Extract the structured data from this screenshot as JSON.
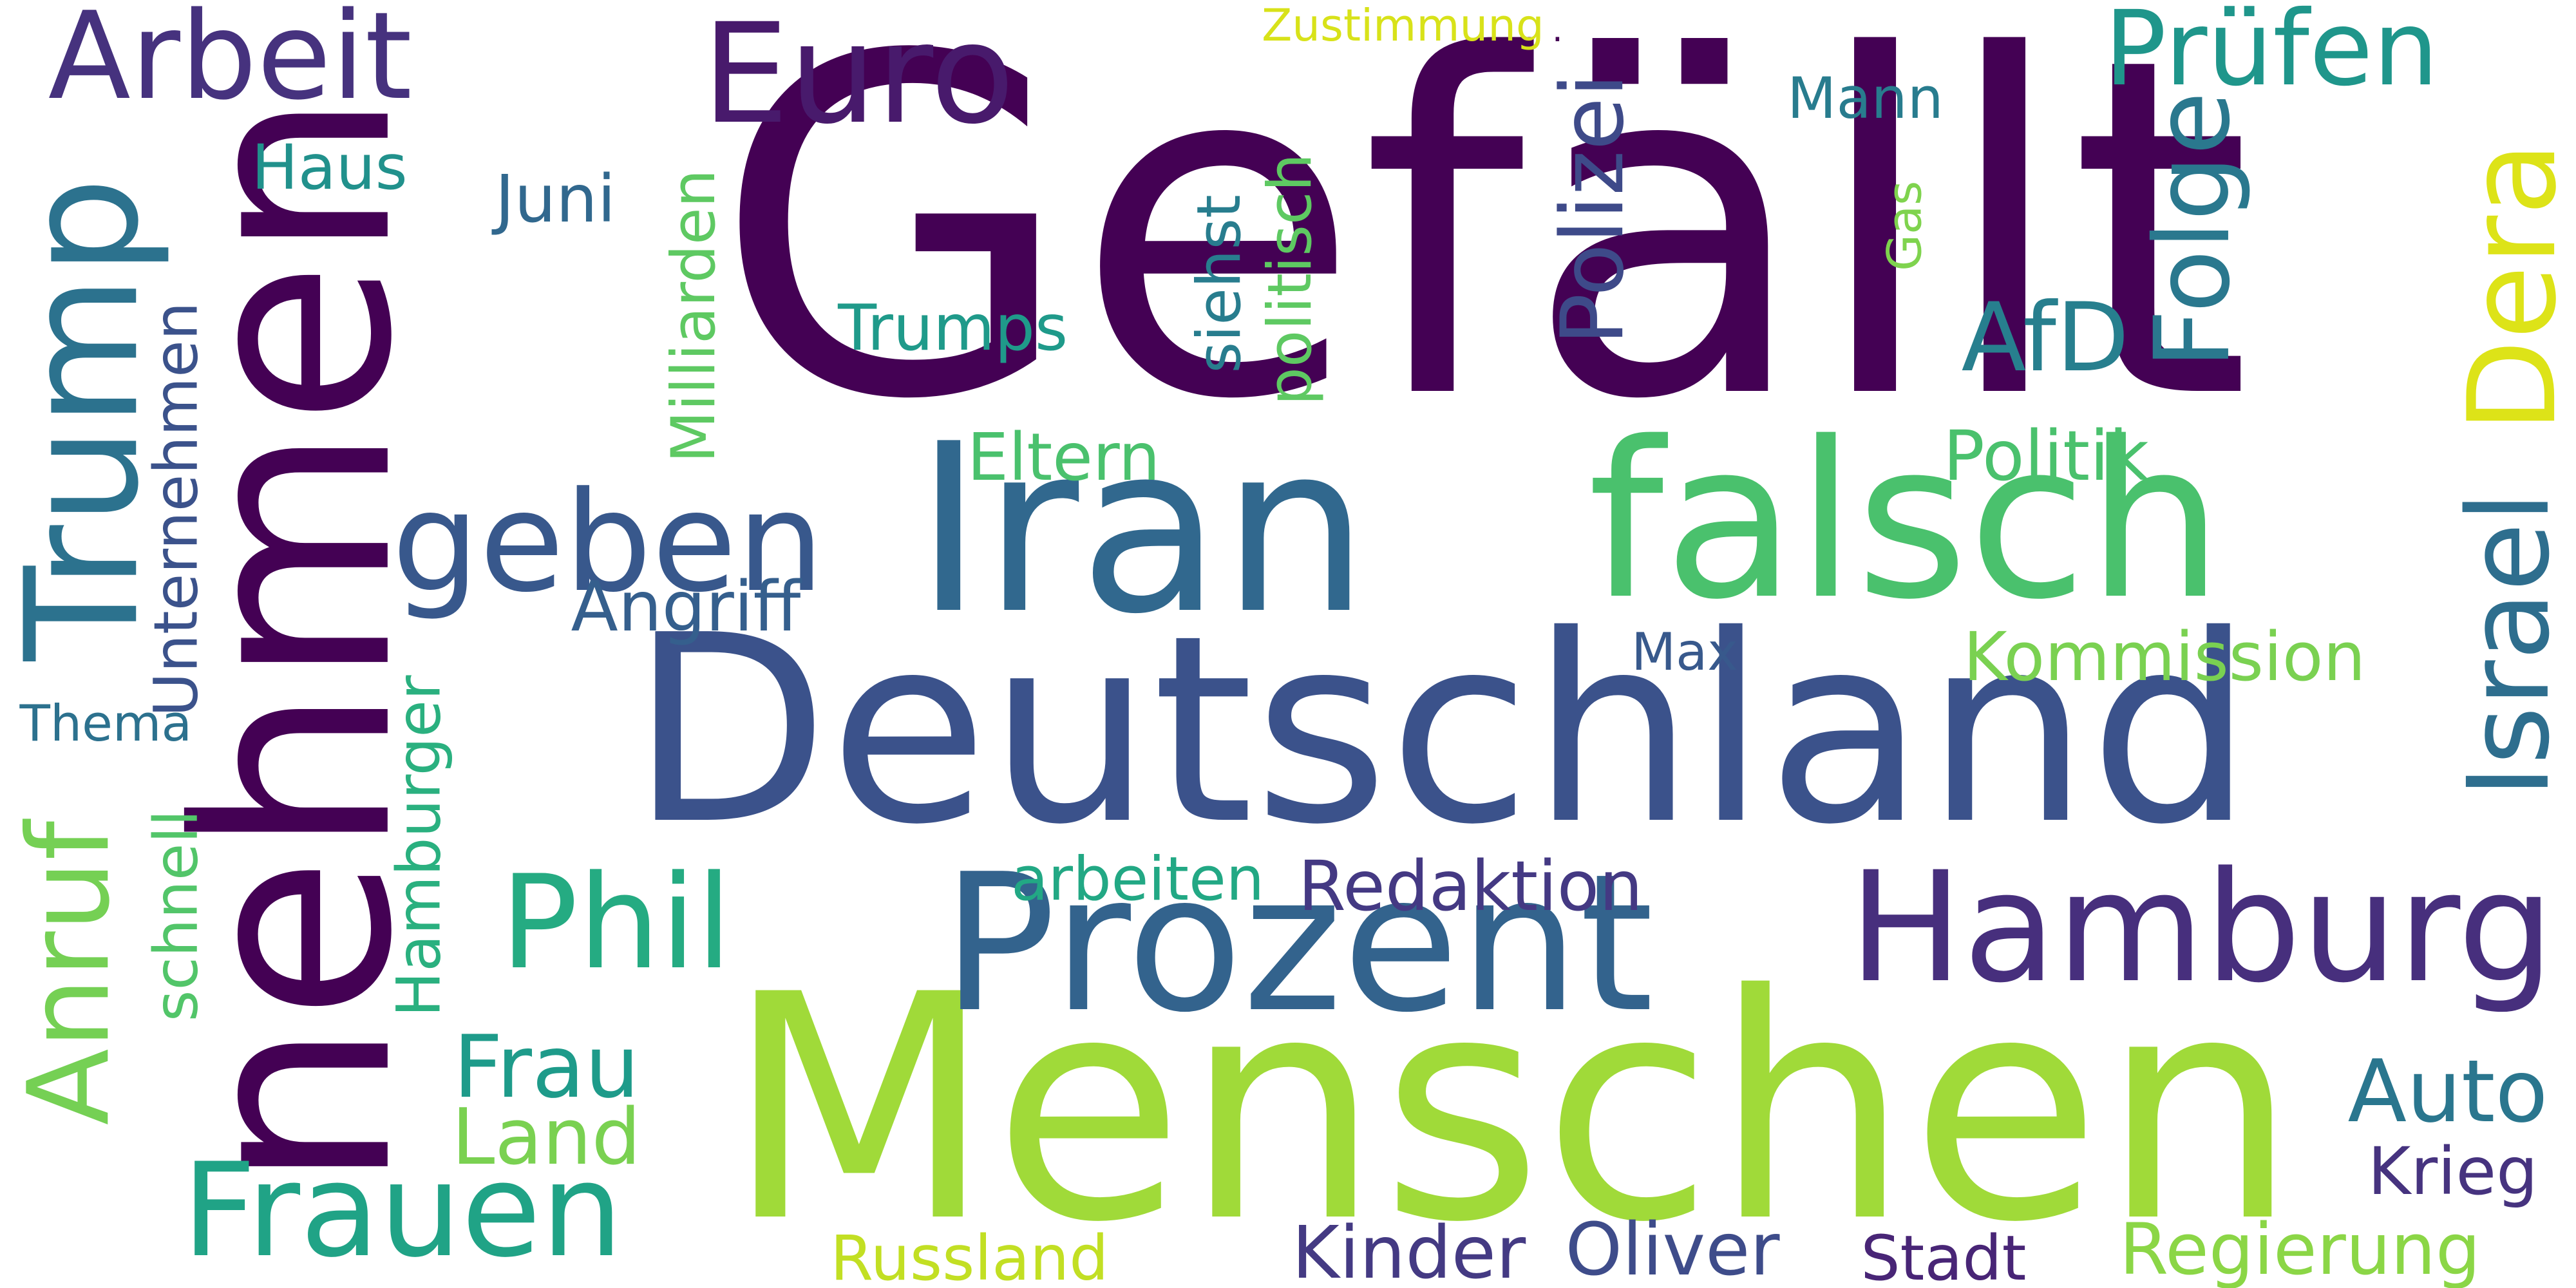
{
  "words": [
    {
      "text": "Gefällt",
      "color": "#440154",
      "rotated": false
    },
    {
      "text": "nehmen",
      "color": "#440154",
      "rotated": true
    },
    {
      "text": "Menschen",
      "color": "#a0da39",
      "rotated": false
    },
    {
      "text": "Deutschland",
      "color": "#3b528b",
      "rotated": false
    },
    {
      "text": "Iran",
      "color": "#31688e",
      "rotated": false
    },
    {
      "text": "falsch",
      "color": "#4ac16d",
      "rotated": false
    },
    {
      "text": "Prozent",
      "color": "#33638d",
      "rotated": false
    },
    {
      "text": "Hamburg",
      "color": "#472f7d",
      "rotated": false
    },
    {
      "text": "Trump",
      "color": "#2c728e",
      "rotated": true
    },
    {
      "text": "Euro",
      "color": "#481a6c",
      "rotated": false
    },
    {
      "text": "Arbeit",
      "color": "#46327e",
      "rotated": false
    },
    {
      "text": "geben",
      "color": "#38588c",
      "rotated": false
    },
    {
      "text": "Dera",
      "color": "#dde318",
      "rotated": true
    },
    {
      "text": "Prüfen",
      "color": "#1f968b",
      "rotated": false
    },
    {
      "text": "Phil",
      "color": "#25ab82",
      "rotated": false
    },
    {
      "text": "Frauen",
      "color": "#20a386",
      "rotated": false
    },
    {
      "text": "Anruf",
      "color": "#75d054",
      "rotated": true
    },
    {
      "text": "Frau",
      "color": "#1e9b8a",
      "rotated": false
    },
    {
      "text": "Land",
      "color": "#7ad151",
      "rotated": false
    },
    {
      "text": "Auto",
      "color": "#2a768e",
      "rotated": false
    },
    {
      "text": "AfD",
      "color": "#277f8e",
      "rotated": false
    },
    {
      "text": "Israel",
      "color": "#2e6e8e",
      "rotated": true
    },
    {
      "text": "Folge",
      "color": "#2a788e",
      "rotated": true
    },
    {
      "text": "Polizei",
      "color": "#3e4a89",
      "rotated": true
    },
    {
      "text": "Trumps",
      "color": "#1f9a8a",
      "rotated": false
    },
    {
      "text": "Angriff",
      "color": "#355f8d",
      "rotated": false
    },
    {
      "text": "Redaktion",
      "color": "#443983",
      "rotated": false
    },
    {
      "text": "Kommission",
      "color": "#7ad151",
      "rotated": false
    },
    {
      "text": "Unternehmen",
      "color": "#3b528b",
      "rotated": true
    },
    {
      "text": "Milliarden",
      "color": "#5ec962",
      "rotated": true
    },
    {
      "text": "Hamburger",
      "color": "#2ab07f",
      "rotated": true
    },
    {
      "text": "schnell",
      "color": "#52c569",
      "rotated": true
    },
    {
      "text": "politisch",
      "color": "#5ec962",
      "rotated": true
    },
    {
      "text": "siehst",
      "color": "#287d8e",
      "rotated": true
    },
    {
      "text": "Gas",
      "color": "#7fd34e",
      "rotated": true
    },
    {
      "text": "Mann",
      "color": "#287c8e",
      "rotated": false
    },
    {
      "text": "Haus",
      "color": "#21918c",
      "rotated": false
    },
    {
      "text": "Juni",
      "color": "#31688e",
      "rotated": false
    },
    {
      "text": "Eltern",
      "color": "#4ac16d",
      "rotated": false
    },
    {
      "text": "Politik",
      "color": "#4ac16d",
      "rotated": false
    },
    {
      "text": "Max",
      "color": "#38598c",
      "rotated": false
    },
    {
      "text": "Thema",
      "color": "#2c718e",
      "rotated": false
    },
    {
      "text": "arbeiten",
      "color": "#22a884",
      "rotated": false
    },
    {
      "text": "Krieg",
      "color": "#46337f",
      "rotated": false
    },
    {
      "text": "Kinder",
      "color": "#443a83",
      "rotated": false
    },
    {
      "text": "Oliver",
      "color": "#3e4c8a",
      "rotated": false
    },
    {
      "text": "Stadt",
      "color": "#482576",
      "rotated": false
    },
    {
      "text": "Regierung",
      "color": "#8bd646",
      "rotated": false
    },
    {
      "text": "Russland",
      "color": "#c2df23",
      "rotated": false
    },
    {
      "text": "Zustimmung",
      "color": "#d8e219",
      "rotated": false
    },
    {
      "text": ".",
      "color": "#440154",
      "rotated": false
    }
  ]
}
